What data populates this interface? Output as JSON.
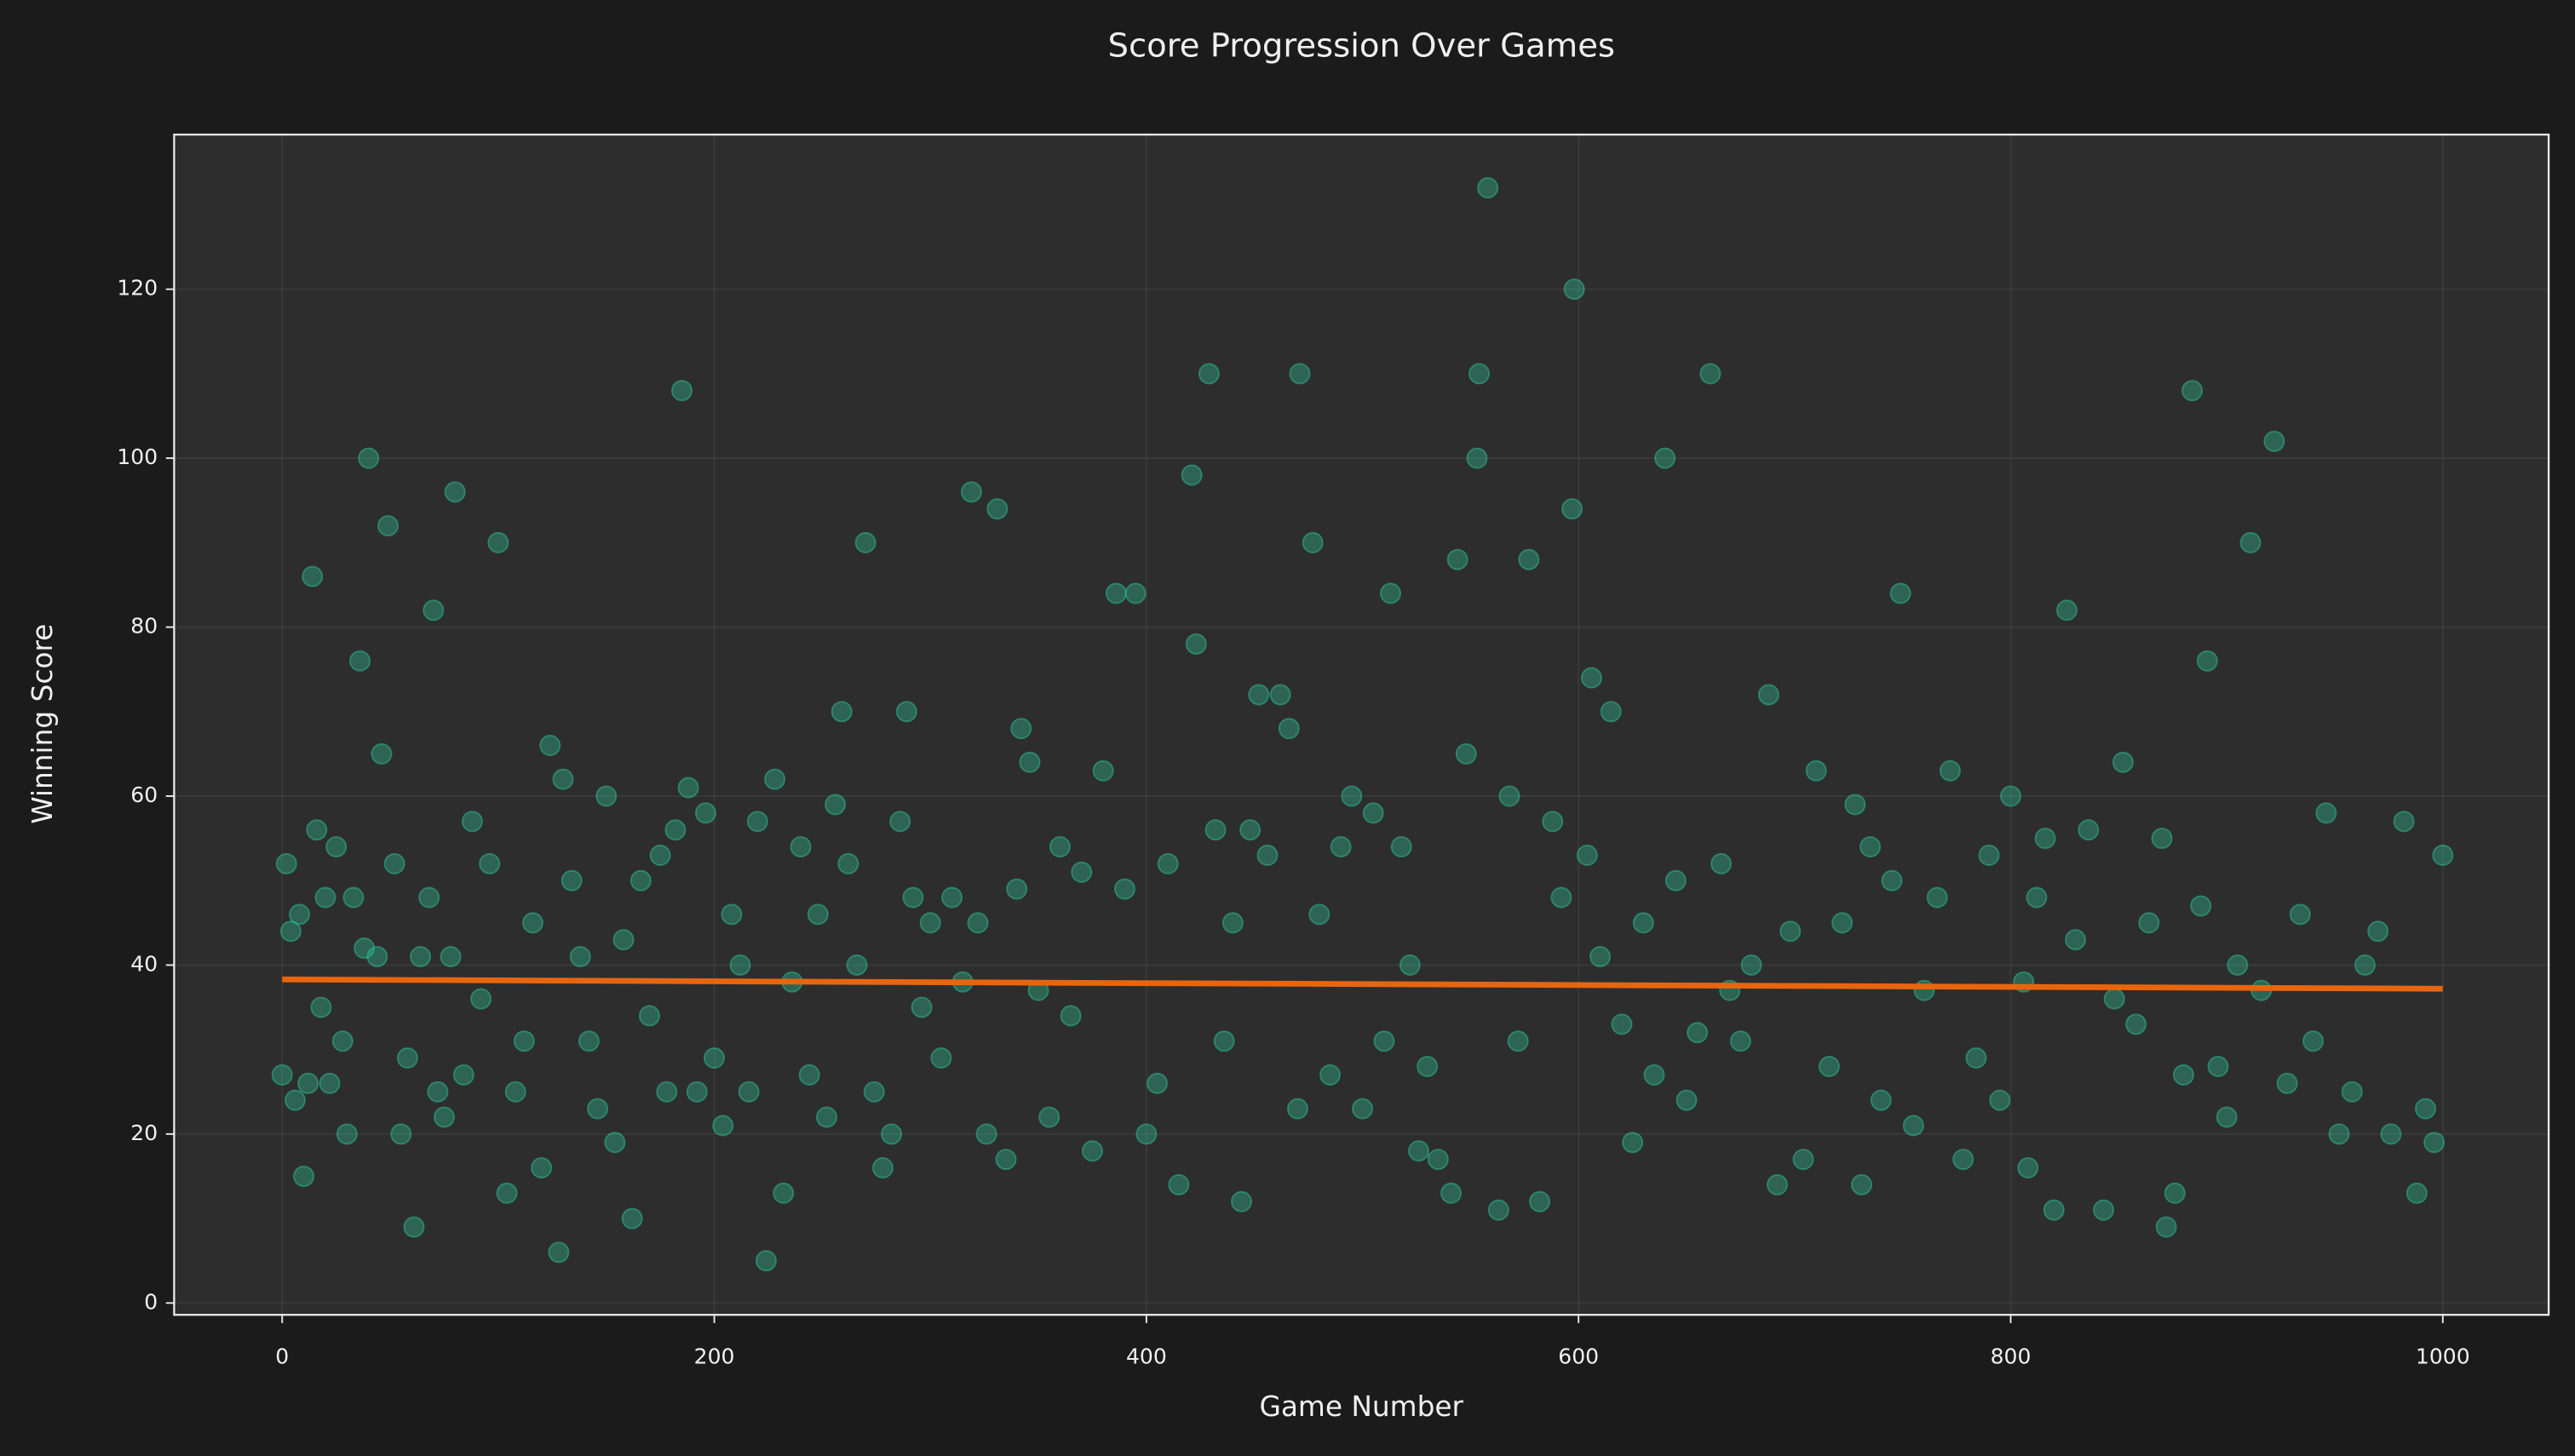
{
  "chart_data": {
    "type": "scatter",
    "title": "Score Progression Over Games",
    "x_label": "Game Number",
    "y_label": "Winning Score",
    "color": "#2ecc9a",
    "x": [
      0,
      2,
      4,
      6,
      8,
      10,
      12,
      14,
      16,
      18,
      20,
      22,
      25,
      28,
      30,
      33,
      36,
      38,
      40,
      44,
      46,
      49,
      52,
      55,
      58,
      61,
      64,
      68,
      70,
      72,
      75,
      78,
      80,
      84,
      88,
      92,
      96,
      100,
      104,
      108,
      112,
      116,
      120,
      124,
      128,
      130,
      134,
      138,
      142,
      146,
      150,
      154,
      158,
      162,
      166,
      170,
      175,
      178,
      182,
      185,
      188,
      192,
      196,
      200,
      204,
      208,
      212,
      216,
      220,
      224,
      228,
      232,
      236,
      240,
      244,
      248,
      252,
      256,
      259,
      262,
      266,
      270,
      274,
      278,
      282,
      286,
      289,
      292,
      296,
      300,
      305,
      310,
      315,
      319,
      322,
      326,
      331,
      335,
      340,
      342,
      346,
      350,
      355,
      360,
      365,
      370,
      375,
      380,
      386,
      390,
      395,
      400,
      405,
      410,
      415,
      421,
      423,
      429,
      432,
      436,
      440,
      444,
      448,
      452,
      456,
      462,
      466,
      470,
      471,
      477,
      480,
      485,
      490,
      495,
      500,
      505,
      510,
      513,
      518,
      522,
      526,
      530,
      535,
      541,
      544,
      548,
      553,
      554,
      558,
      563,
      568,
      572,
      577,
      582,
      588,
      592,
      597,
      598,
      604,
      606,
      610,
      615,
      620,
      625,
      630,
      635,
      640,
      645,
      650,
      655,
      661,
      666,
      670,
      675,
      680,
      688,
      692,
      698,
      704,
      710,
      716,
      722,
      728,
      731,
      735,
      740,
      745,
      749,
      755,
      760,
      766,
      772,
      778,
      784,
      790,
      795,
      800,
      806,
      808,
      812,
      816,
      820,
      826,
      830,
      836,
      843,
      848,
      852,
      858,
      864,
      870,
      872,
      876,
      880,
      884,
      888,
      891,
      896,
      900,
      905,
      911,
      916,
      922,
      928,
      934,
      940,
      946,
      952,
      958,
      964,
      970,
      976,
      982,
      988,
      992,
      996,
      1000
    ],
    "values": [
      27,
      52,
      44,
      24,
      46,
      15,
      26,
      86,
      56,
      35,
      48,
      26,
      54,
      31,
      20,
      48,
      76,
      42,
      100,
      41,
      65,
      92,
      52,
      20,
      29,
      9,
      41,
      48,
      82,
      25,
      22,
      41,
      96,
      27,
      57,
      36,
      52,
      90,
      13,
      25,
      31,
      45,
      16,
      66,
      6,
      62,
      50,
      41,
      31,
      23,
      60,
      19,
      43,
      10,
      50,
      34,
      53,
      25,
      56,
      108,
      61,
      25,
      58,
      29,
      21,
      46,
      40,
      25,
      57,
      5,
      62,
      13,
      38,
      54,
      27,
      46,
      22,
      59,
      70,
      52,
      40,
      90,
      25,
      16,
      20,
      57,
      70,
      48,
      35,
      45,
      29,
      48,
      38,
      96,
      45,
      20,
      94,
      17,
      49,
      68,
      64,
      37,
      22,
      54,
      34,
      51,
      18,
      63,
      84,
      49,
      84,
      20,
      26,
      52,
      14,
      98,
      78,
      110,
      56,
      31,
      45,
      12,
      56,
      72,
      53,
      72,
      68,
      23,
      110,
      90,
      46,
      27,
      54,
      60,
      23,
      58,
      31,
      84,
      54,
      40,
      18,
      28,
      17,
      13,
      88,
      65,
      100,
      110,
      132,
      11,
      60,
      31,
      88,
      12,
      57,
      48,
      94,
      120,
      53,
      74,
      41,
      70,
      33,
      19,
      45,
      27,
      100,
      50,
      24,
      32,
      110,
      52,
      37,
      31,
      40,
      72,
      14,
      44,
      17,
      63,
      28,
      45,
      59,
      14,
      54,
      24,
      50,
      84,
      21,
      37,
      48,
      63,
      17,
      29,
      53,
      24,
      60,
      38,
      16,
      48,
      55,
      11,
      82,
      43,
      56,
      11,
      36,
      64,
      33,
      45,
      55,
      9,
      13,
      27,
      108,
      47,
      76,
      28,
      22,
      40,
      90,
      37,
      102,
      26,
      46,
      31,
      58,
      20,
      25,
      40,
      44,
      20,
      57,
      13,
      23,
      19,
      53
    ],
    "trend": {
      "color": "#e8650f",
      "x": [
        0,
        1000
      ],
      "values": [
        38.3,
        37.2
      ]
    },
    "xlim": [
      -50,
      1049
    ],
    "ylim": [
      -1.4,
      138.3
    ],
    "xticks": [
      0,
      200,
      400,
      600,
      800,
      1000
    ],
    "yticks": [
      0,
      20,
      40,
      60,
      80,
      100,
      120
    ],
    "grid": true
  }
}
